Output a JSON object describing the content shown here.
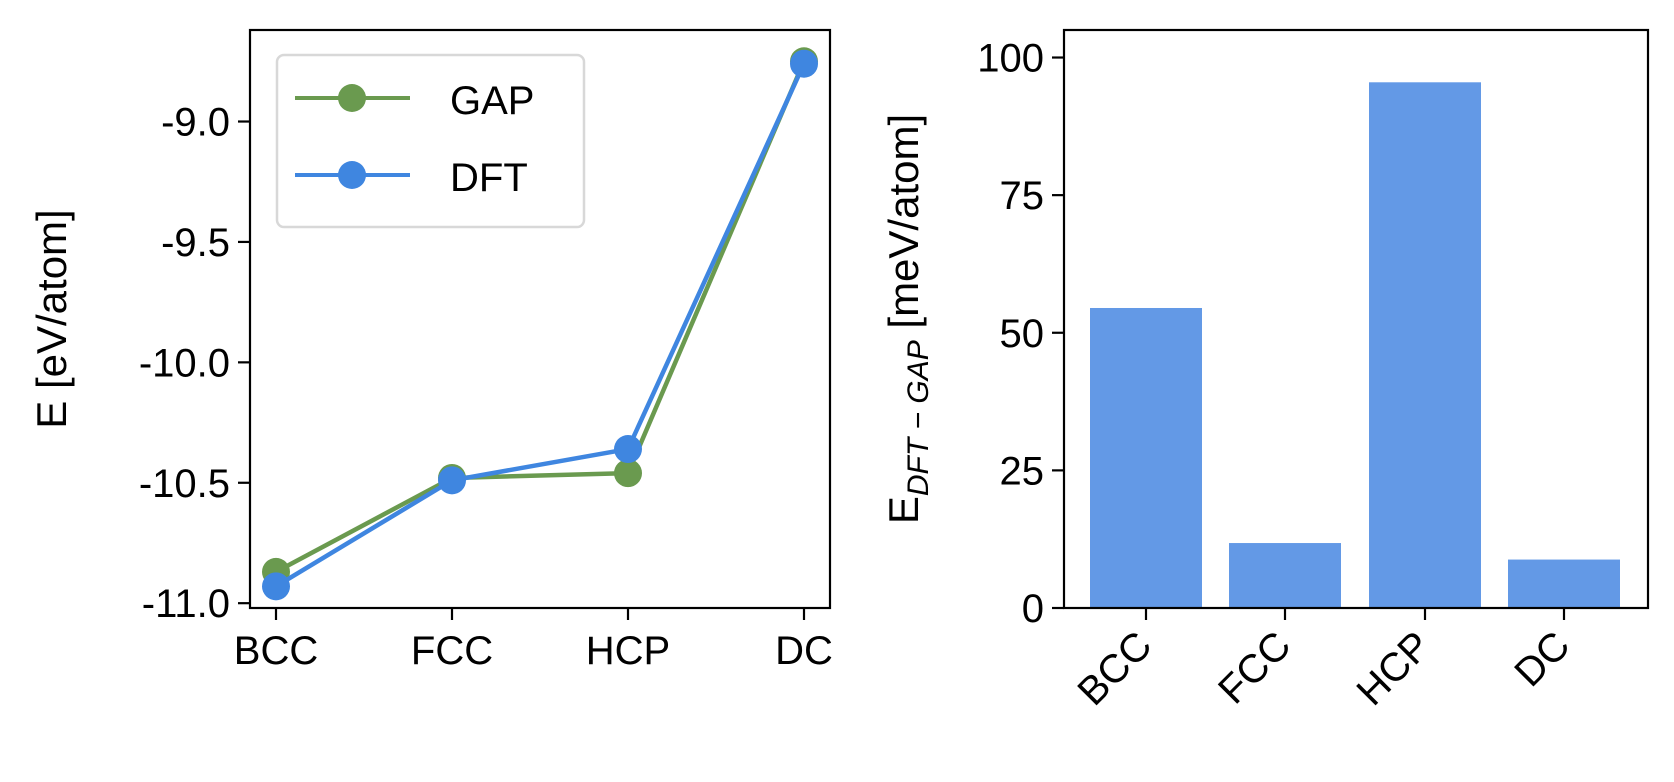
{
  "chart_data": [
    {
      "type": "line",
      "categories": [
        "BCC",
        "FCC",
        "HCP",
        "DC"
      ],
      "series": [
        {
          "name": "GAP",
          "color": "#6a9a4f",
          "values": [
            -10.87,
            -10.48,
            -10.46,
            -8.75
          ]
        },
        {
          "name": "DFT",
          "color": "#3f86e0",
          "values": [
            -10.93,
            -10.49,
            -10.36,
            -8.76
          ]
        }
      ],
      "ylabel": "E [eV/atom]",
      "yticks": [
        -9.0,
        -9.5,
        -10.0,
        -10.5,
        -11.0
      ],
      "ytick_labels": [
        "-9.0",
        "-9.5",
        "-10.0",
        "-10.5",
        "-11.0"
      ],
      "ylim": [
        -11.02,
        -8.62
      ],
      "legend_loc": "upper-left"
    },
    {
      "type": "bar",
      "categories": [
        "BCC",
        "FCC",
        "HCP",
        "DC"
      ],
      "values": [
        54.5,
        11.8,
        95.5,
        8.8
      ],
      "color": "#6399e6",
      "ylabel_main": "E",
      "ylabel_sub": "DFT − GAP",
      "ylabel_units": " [meV/atom]",
      "yticks": [
        0,
        25,
        50,
        75,
        100
      ],
      "ytick_labels": [
        "0",
        "25",
        "50",
        "75",
        "100"
      ],
      "ylim": [
        0,
        105
      ]
    }
  ]
}
